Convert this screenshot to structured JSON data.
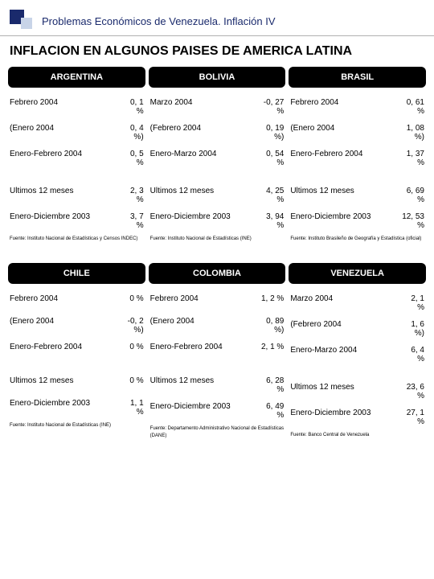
{
  "header": "Problemas Económicos de Venezuela. Inflación IV",
  "title": "INFLACION EN ALGUNOS PAISES DE AMERICA LATINA",
  "topCountries": [
    {
      "name": "ARGENTINA",
      "rows1": [
        {
          "label": "Febrero 2004",
          "value": "0, 1\n%"
        },
        {
          "label": "(Enero 2004",
          "value": "0, 4\n%)"
        },
        {
          "label": "Enero-Febrero 2004",
          "value": "0, 5\n%"
        }
      ],
      "rows2": [
        {
          "label": "Ultimos 12 meses",
          "value": "2, 3\n%"
        },
        {
          "label": "Enero-Diciembre 2003",
          "value": "3, 7\n%"
        }
      ],
      "source": "Fuente: Instituto Nacional de Estadísticas y Censos INDEC)"
    },
    {
      "name": "BOLIVIA",
      "rows1": [
        {
          "label": "Marzo 2004",
          "value": "-0, 27\n%"
        },
        {
          "label": "(Febrero 2004",
          "value": "0, 19\n%)"
        },
        {
          "label": "Enero-Marzo 2004",
          "value": "0, 54\n%"
        }
      ],
      "rows2": [
        {
          "label": "Ultimos 12 meses",
          "value": "4, 25\n%"
        },
        {
          "label": "Enero-Diciembre 2003",
          "value": "3, 94\n%"
        }
      ],
      "source": "Fuente: Instituto Nacional de Estadísticas (INE)"
    },
    {
      "name": "BRASIL",
      "rows1": [
        {
          "label": "Febrero 2004",
          "value": "0, 61\n%"
        },
        {
          "label": "(Enero 2004",
          "value": "1, 08\n%)"
        },
        {
          "label": "Enero-Febrero 2004",
          "value": "1, 37\n%"
        }
      ],
      "rows2": [
        {
          "label": "Ultimos 12 meses",
          "value": "6, 69\n%"
        },
        {
          "label": "Enero-Diciembre 2003",
          "value": "12, 53\n%"
        }
      ],
      "source": "Fuente: Instituto Brasileño de Geografía y Estadística (oficial)"
    }
  ],
  "bottomCountries": [
    {
      "name": "CHILE",
      "rows1": [
        {
          "label": "Febrero 2004",
          "value": "0 %"
        },
        {
          "label": "(Enero 2004",
          "value": "-0, 2\n%)"
        },
        {
          "label": "Enero-Febrero 2004",
          "value": "0 %"
        }
      ],
      "rows2": [
        {
          "label": "Ultimos 12 meses",
          "value": "0 %"
        },
        {
          "label": "Enero-Diciembre 2003",
          "value": "1, 1\n%"
        }
      ],
      "source": "Fuente: Instituto Nacional de Estadísticas (INE)"
    },
    {
      "name": "COLOMBIA",
      "rows1": [
        {
          "label": "Febrero 2004",
          "value": "1, 2 %"
        },
        {
          "label": "(Enero 2004",
          "value": "0, 89\n%)"
        },
        {
          "label": "Enero-Febrero 2004",
          "value": "2, 1 %"
        }
      ],
      "rows2": [
        {
          "label": "Ultimos 12 meses",
          "value": "6, 28\n%"
        },
        {
          "label": "Enero-Diciembre 2003",
          "value": "6, 49\n%"
        }
      ],
      "source": "Fuente: Departamento Administrativo Nacional de Estadísticas (DANE)"
    },
    {
      "name": "VENEZUELA",
      "rows1": [
        {
          "label": "Marzo 2004",
          "value": "2, 1\n%"
        },
        {
          "label": "(Febrero 2004",
          "value": "1, 6\n%)"
        },
        {
          "label": "Enero-Marzo 2004",
          "value": "6, 4\n%"
        }
      ],
      "rows2": [
        {
          "label": "Ultimos 12 meses",
          "value": "23, 6\n%"
        },
        {
          "label": "Enero-Diciembre 2003",
          "value": "27, 1\n%"
        }
      ],
      "source": "Fuente: Banco Central de Venezuela"
    }
  ]
}
